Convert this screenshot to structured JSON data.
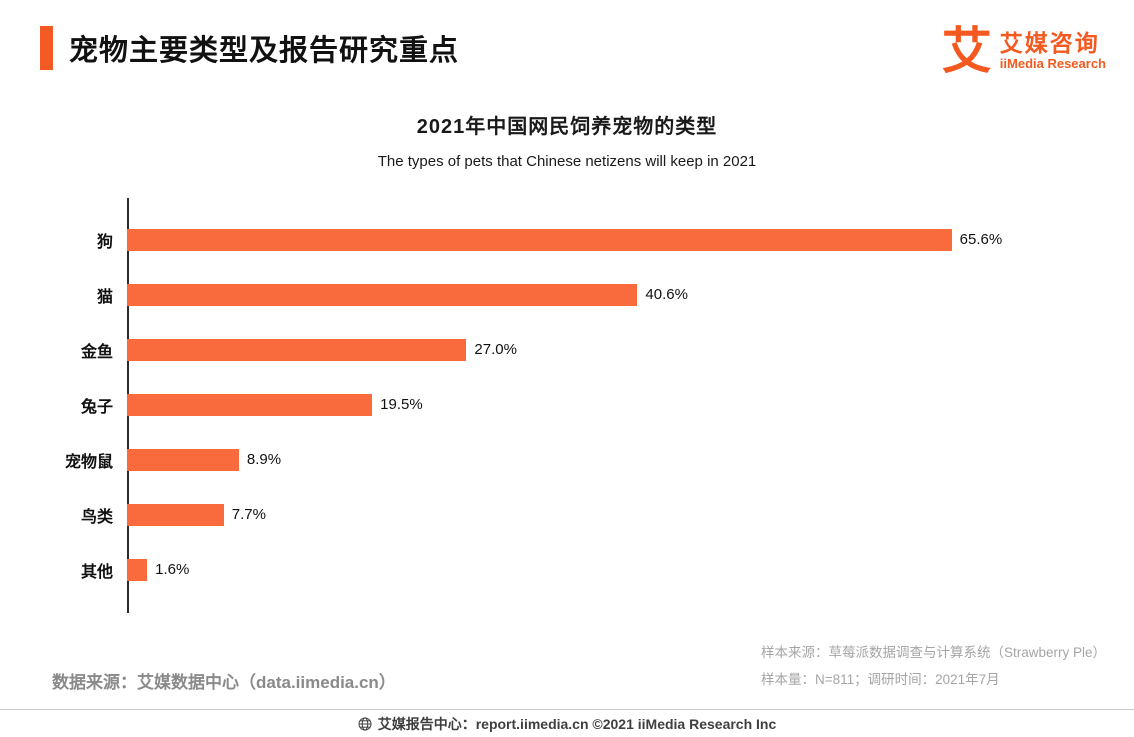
{
  "header": {
    "title": "宠物主要类型及报告研究重点",
    "logo": {
      "glyph": "艾",
      "brand_cn": "艾媒咨询",
      "brand_en": "iiMedia Research"
    }
  },
  "chart_data": {
    "type": "bar",
    "orientation": "horizontal",
    "title": "2021年中国网民饲养宠物的类型",
    "subtitle": "The types of pets that Chinese netizens will keep in 2021",
    "categories": [
      "狗",
      "猫",
      "金鱼",
      "兔子",
      "宠物鼠",
      "鸟类",
      "其他"
    ],
    "values": [
      65.6,
      40.6,
      27.0,
      19.5,
      8.9,
      7.7,
      1.6
    ],
    "value_labels": [
      "65.6%",
      "40.6%",
      "27.0%",
      "19.5%",
      "8.9%",
      "7.7%",
      "1.6%"
    ],
    "xlabel": "",
    "ylabel": "",
    "xlim": [
      0,
      70
    ],
    "grid": false,
    "legend": false,
    "bar_color": "#F96B3D"
  },
  "footer": {
    "source_left": "数据来源：艾媒数据中心（data.iimedia.cn）",
    "sample_source": "样本来源：草莓派数据调查与计算系统（Strawberry Ple）",
    "sample_info": "样本量：N=811；调研时间：2021年7月",
    "bottom_bar": "艾媒报告中心：report.iimedia.cn ©2021  iiMedia Research Inc"
  },
  "colors": {
    "accent": "#F4591F",
    "bar": "#F96B3D",
    "text_gray": "#8a8a8a"
  }
}
